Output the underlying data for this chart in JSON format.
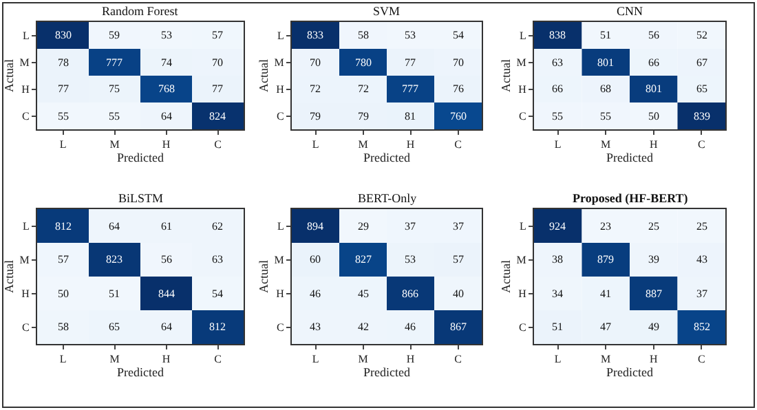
{
  "chart_data": [
    {
      "type": "heatmap",
      "title": "Random Forest",
      "xlabel": "Predicted",
      "ylabel": "Actual",
      "categories": [
        "L",
        "M",
        "H",
        "C"
      ],
      "y_categories": [
        "L",
        "M",
        "H",
        "C"
      ],
      "data_labels": true,
      "cells": [
        [
          830,
          59,
          53,
          57
        ],
        [
          78,
          777,
          74,
          70
        ],
        [
          77,
          75,
          768,
          77
        ],
        [
          55,
          55,
          64,
          824
        ]
      ]
    },
    {
      "type": "heatmap",
      "title": "SVM",
      "xlabel": "Predicted",
      "ylabel": "Actual",
      "categories": [
        "L",
        "M",
        "H",
        "C"
      ],
      "y_categories": [
        "L",
        "M",
        "H",
        "C"
      ],
      "data_labels": true,
      "cells": [
        [
          833,
          58,
          53,
          54
        ],
        [
          70,
          780,
          77,
          70
        ],
        [
          72,
          72,
          777,
          76
        ],
        [
          79,
          79,
          81,
          760
        ]
      ]
    },
    {
      "type": "heatmap",
      "title": "CNN",
      "xlabel": "Predicted",
      "ylabel": "Actual",
      "categories": [
        "L",
        "M",
        "H",
        "C"
      ],
      "y_categories": [
        "L",
        "M",
        "H",
        "C"
      ],
      "data_labels": true,
      "cells": [
        [
          838,
          51,
          56,
          52
        ],
        [
          63,
          801,
          66,
          67
        ],
        [
          66,
          68,
          801,
          65
        ],
        [
          55,
          55,
          50,
          839
        ]
      ]
    },
    {
      "type": "heatmap",
      "title": "BiLSTM",
      "xlabel": "Predicted",
      "ylabel": "Actual",
      "categories": [
        "L",
        "M",
        "H",
        "C"
      ],
      "y_categories": [
        "L",
        "M",
        "H",
        "C"
      ],
      "data_labels": true,
      "cells": [
        [
          812,
          64,
          61,
          62
        ],
        [
          57,
          823,
          56,
          63
        ],
        [
          50,
          51,
          844,
          54
        ],
        [
          58,
          65,
          64,
          812
        ]
      ]
    },
    {
      "type": "heatmap",
      "title": "BERT-Only",
      "xlabel": "Predicted",
      "ylabel": "Actual",
      "categories": [
        "L",
        "M",
        "H",
        "C"
      ],
      "y_categories": [
        "L",
        "M",
        "H",
        "C"
      ],
      "data_labels": true,
      "cells": [
        [
          894,
          29,
          37,
          37
        ],
        [
          60,
          827,
          53,
          57
        ],
        [
          46,
          45,
          866,
          40
        ],
        [
          43,
          42,
          46,
          867
        ]
      ]
    },
    {
      "type": "heatmap",
      "title": "Proposed (HF-BERT)",
      "xlabel": "Predicted",
      "ylabel": "Actual",
      "categories": [
        "L",
        "M",
        "H",
        "C"
      ],
      "y_categories": [
        "L",
        "M",
        "H",
        "C"
      ],
      "data_labels": true,
      "cells": [
        [
          924,
          23,
          25,
          25
        ],
        [
          38,
          879,
          39,
          43
        ],
        [
          34,
          41,
          887,
          37
        ],
        [
          51,
          47,
          49,
          852
        ]
      ]
    }
  ]
}
